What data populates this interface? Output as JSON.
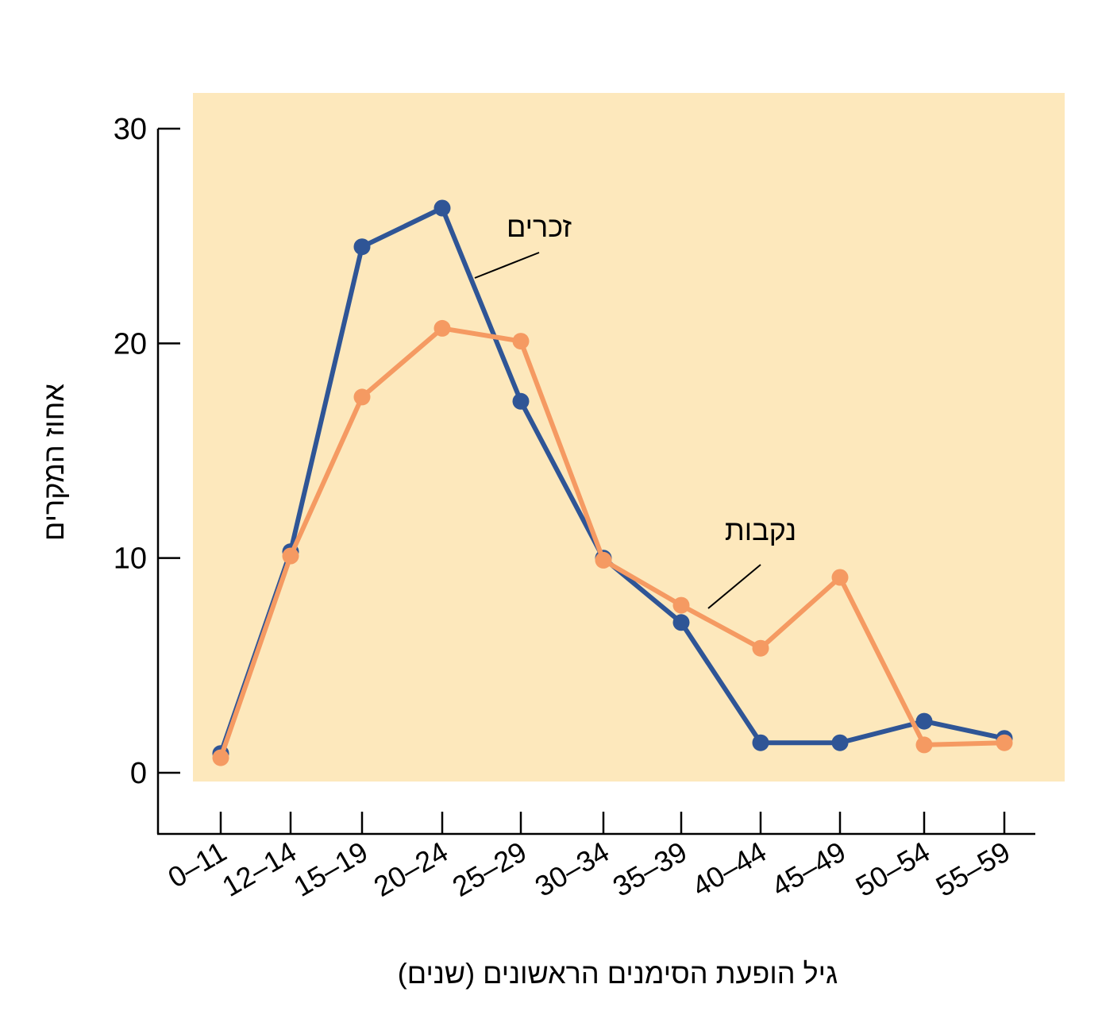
{
  "chart_data": {
    "type": "line",
    "title": "",
    "xlabel": "גיל הופעת הסימנים הראשונים (שנים)",
    "ylabel": "אחוז המקרים",
    "ylim": [
      0,
      30
    ],
    "yticks": [
      "0",
      "10",
      "20",
      "30"
    ],
    "categories": [
      "0–11",
      "12–14",
      "15–19",
      "20–24",
      "25–29",
      "30–34",
      "35–39",
      "40–44",
      "45–49",
      "50–54",
      "55–59"
    ],
    "series": [
      {
        "name": "זכרים",
        "color": "#2f5596",
        "values": [
          0.9,
          10.3,
          24.5,
          26.3,
          17.3,
          10.0,
          7.0,
          1.4,
          1.4,
          2.4,
          1.6
        ]
      },
      {
        "name": "נקבות",
        "color": "#f59a62",
        "values": [
          0.7,
          10.1,
          17.5,
          20.7,
          20.1,
          9.9,
          7.8,
          5.8,
          9.1,
          1.3,
          1.4
        ]
      }
    ],
    "background_color": "#fde8bc",
    "grid": false
  }
}
